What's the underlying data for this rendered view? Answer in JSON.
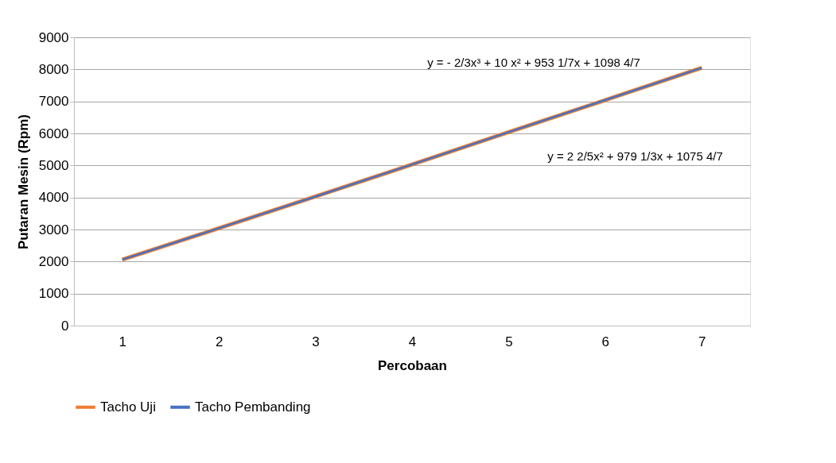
{
  "chart_data": {
    "type": "line",
    "categories": [
      "1",
      "2",
      "3",
      "4",
      "5",
      "6",
      "7"
    ],
    "xlabel": "Percobaan",
    "ylabel": "Putaran Mesin (Rpm)",
    "series": [
      {
        "name": "Tacho Uji",
        "color": "#ed7d31",
        "values": [
          2060,
          3040,
          4030,
          5030,
          6040,
          7040,
          8050
        ]
      },
      {
        "name": "Tacho Pembanding",
        "color": "#4472c4",
        "values": [
          2060,
          3040,
          4030,
          5030,
          6040,
          7040,
          8050
        ]
      }
    ],
    "ylim": [
      0,
      9000
    ],
    "yticks": [
      0,
      1000,
      2000,
      3000,
      4000,
      5000,
      6000,
      7000,
      8000,
      9000
    ],
    "grid": "y",
    "legend": "bottom",
    "marker": "none",
    "line_style": "solid",
    "annotations": [
      "y = - 2/3x³ + 10    x² + 953 1/7x + 1098 4/7",
      "y = 2 2/5x² + 979 1/3x + 1075 4/7"
    ]
  }
}
